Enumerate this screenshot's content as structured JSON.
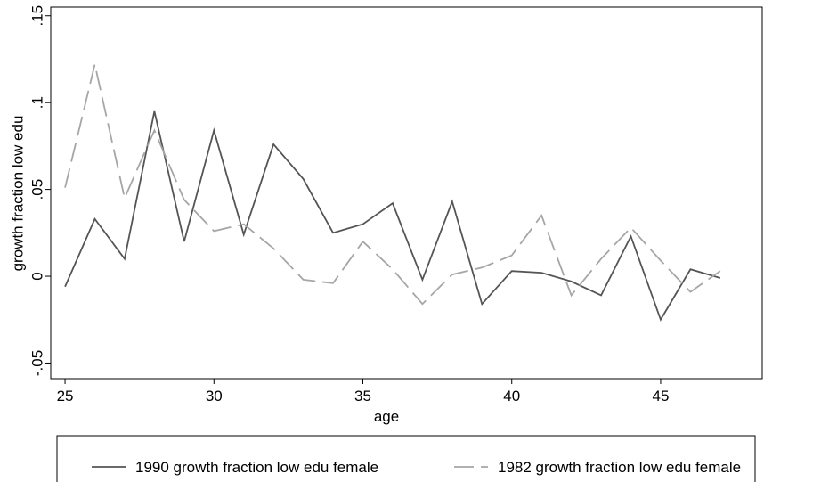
{
  "chart_data": {
    "type": "line",
    "x_label": "age",
    "y_label": "growth fraction low edu",
    "x": [
      25,
      26,
      27,
      28,
      29,
      30,
      31,
      32,
      33,
      34,
      35,
      36,
      37,
      38,
      39,
      40,
      41,
      42,
      43,
      44,
      45,
      46,
      47
    ],
    "series": [
      {
        "name": "1990 growth fraction low edu female",
        "color": "#555555",
        "dash": "solid",
        "values": [
          -0.006,
          0.033,
          0.01,
          0.095,
          0.02,
          0.084,
          0.024,
          0.076,
          0.056,
          0.025,
          0.03,
          0.042,
          -0.002,
          0.043,
          -0.016,
          0.003,
          0.002,
          -0.003,
          -0.011,
          0.023,
          -0.025,
          0.004,
          -0.001
        ]
      },
      {
        "name": "1982 growth fraction low edu female",
        "color": "#a6a6a6",
        "dash": "dashed",
        "values": [
          0.051,
          0.122,
          0.045,
          0.084,
          0.044,
          0.026,
          0.03,
          0.016,
          -0.002,
          -0.004,
          0.02,
          0.004,
          -0.016,
          0.001,
          0.005,
          0.012,
          0.035,
          -0.011,
          0.01,
          0.028,
          0.009,
          -0.009,
          0.003
        ]
      }
    ],
    "xlim": [
      24.52,
      48.41
    ],
    "xticks": [
      25,
      30,
      35,
      40,
      45
    ],
    "ylim": [
      -0.059,
      0.155
    ],
    "yticks": [
      {
        "value": -0.05,
        "label": "-.05"
      },
      0,
      {
        "value": 0.05,
        "label": ".05"
      },
      {
        "value": 0.1,
        "label": ".1"
      },
      {
        "value": 0.15,
        "label": ".15"
      }
    ],
    "grid": false
  }
}
